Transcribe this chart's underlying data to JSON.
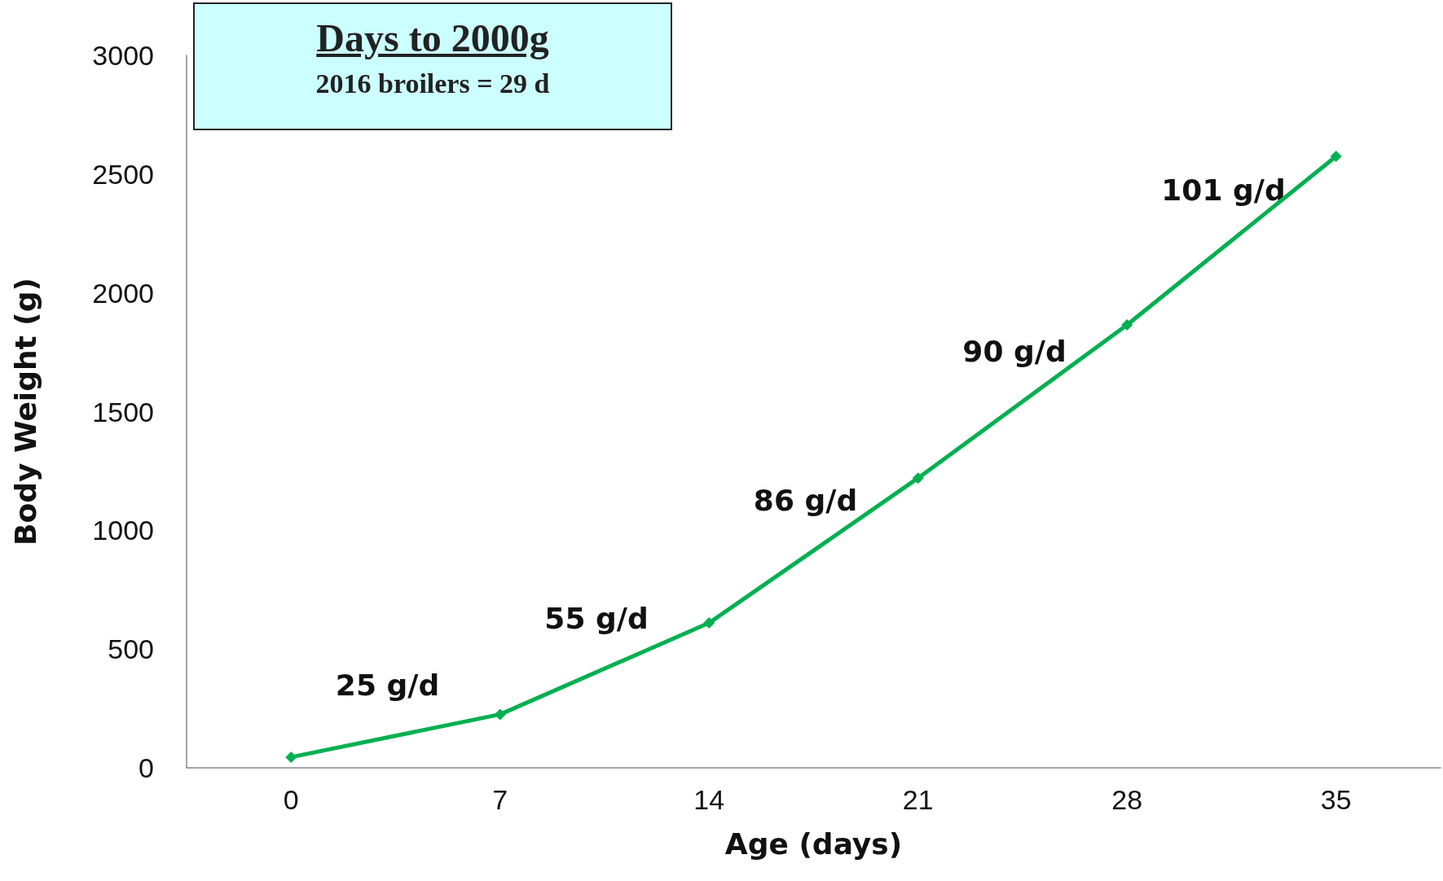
{
  "chart_data": {
    "type": "line",
    "title": "Days to 2000g",
    "subtitle": "2016 broilers = 29 d",
    "xlabel": "Age (days)",
    "ylabel": "Body Weight (g)",
    "categories": [
      "0",
      "7",
      "14",
      "21",
      "28",
      "35"
    ],
    "series": [
      {
        "color": "#00b050",
        "values": [
          45,
          225,
          610,
          1220,
          1865,
          2575
        ]
      }
    ],
    "ylim": [
      0,
      3000
    ],
    "yticks": [
      0,
      500,
      1000,
      1500,
      2000,
      2500,
      3000
    ],
    "grid": false,
    "marker": "diamond",
    "line_style": "solid",
    "annotations": [
      "25 g/d",
      "55 g/d",
      "86 g/d",
      "90 g/d",
      "101 g/d"
    ]
  }
}
